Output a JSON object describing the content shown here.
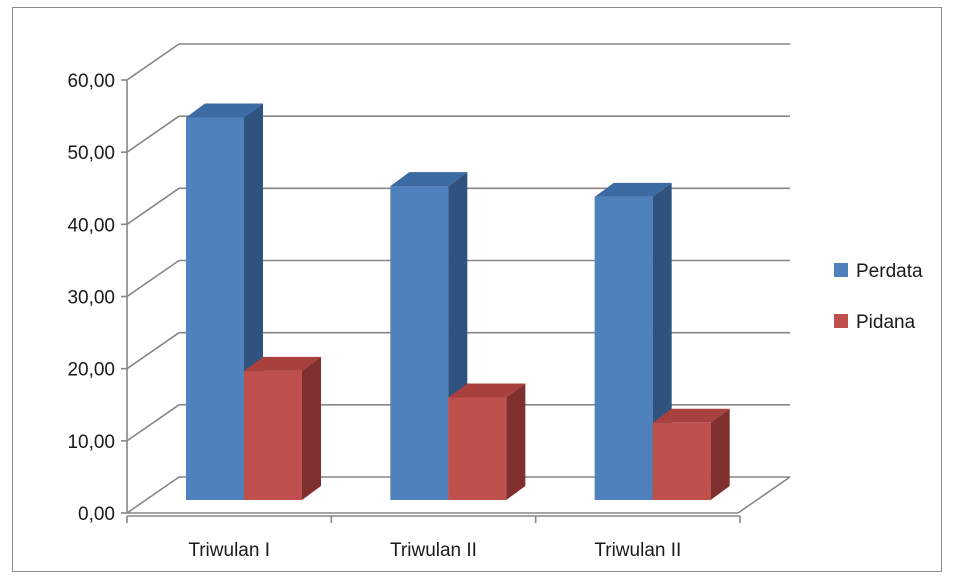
{
  "chart_data": {
    "type": "bar",
    "categories": [
      "Triwulan I",
      "Triwulan II",
      "Triwulan II"
    ],
    "series": [
      {
        "name": "Perdata",
        "values": [
          53.0,
          43.5,
          42.0
        ],
        "color": "#4F81BD",
        "top_color": "#3C6AA3",
        "side_color": "#2F527F"
      },
      {
        "name": "Pidana",
        "values": [
          17.9,
          14.2,
          10.7
        ],
        "color": "#C0504D",
        "top_color": "#A8403D",
        "side_color": "#7F2F2D"
      }
    ],
    "y_ticks": [
      "0,00",
      "10,00",
      "20,00",
      "30,00",
      "40,00",
      "50,00",
      "60,00"
    ],
    "ylim": [
      0,
      60
    ],
    "title": "",
    "xlabel": "",
    "ylabel": "",
    "grid": true,
    "legend_position": "right",
    "style": "3d-clustered-column"
  }
}
